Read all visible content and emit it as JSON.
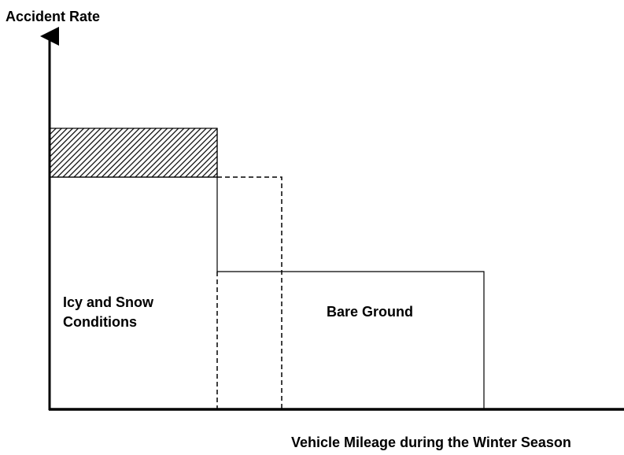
{
  "y_axis_label": "Accident Rate",
  "x_axis_label": "Vehicle Mileage during the Winter Season",
  "regions": [
    {
      "label_lines": [
        "Icy and Snow",
        "Conditions"
      ]
    },
    {
      "label_lines": [
        "Bare Ground"
      ]
    }
  ]
}
